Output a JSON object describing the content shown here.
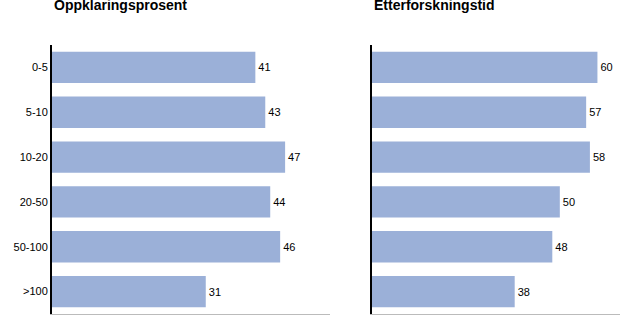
{
  "chart_data": [
    {
      "type": "bar",
      "title": "Oppklaringsprosent",
      "orientation": "horizontal",
      "categories": [
        "0-5",
        "5-10",
        "10-20",
        "20-50",
        "50-100",
        ">100"
      ],
      "values": [
        41,
        43,
        47,
        44,
        46,
        31
      ],
      "color": "#9bb0d8",
      "xlim": [
        0,
        56
      ],
      "xticks": [],
      "data_labels": true,
      "tick_labels": "y"
    },
    {
      "type": "bar",
      "title": "Etterforskningstid",
      "orientation": "horizontal",
      "categories": [
        "0-5",
        "5-10",
        "10-20",
        "20-50",
        "50-100",
        ">100"
      ],
      "values": [
        60,
        57,
        58,
        50,
        48,
        38
      ],
      "color": "#9bb0d8",
      "xlim": [
        0,
        66
      ],
      "xticks": [],
      "data_labels": true,
      "tick_labels": false
    }
  ]
}
